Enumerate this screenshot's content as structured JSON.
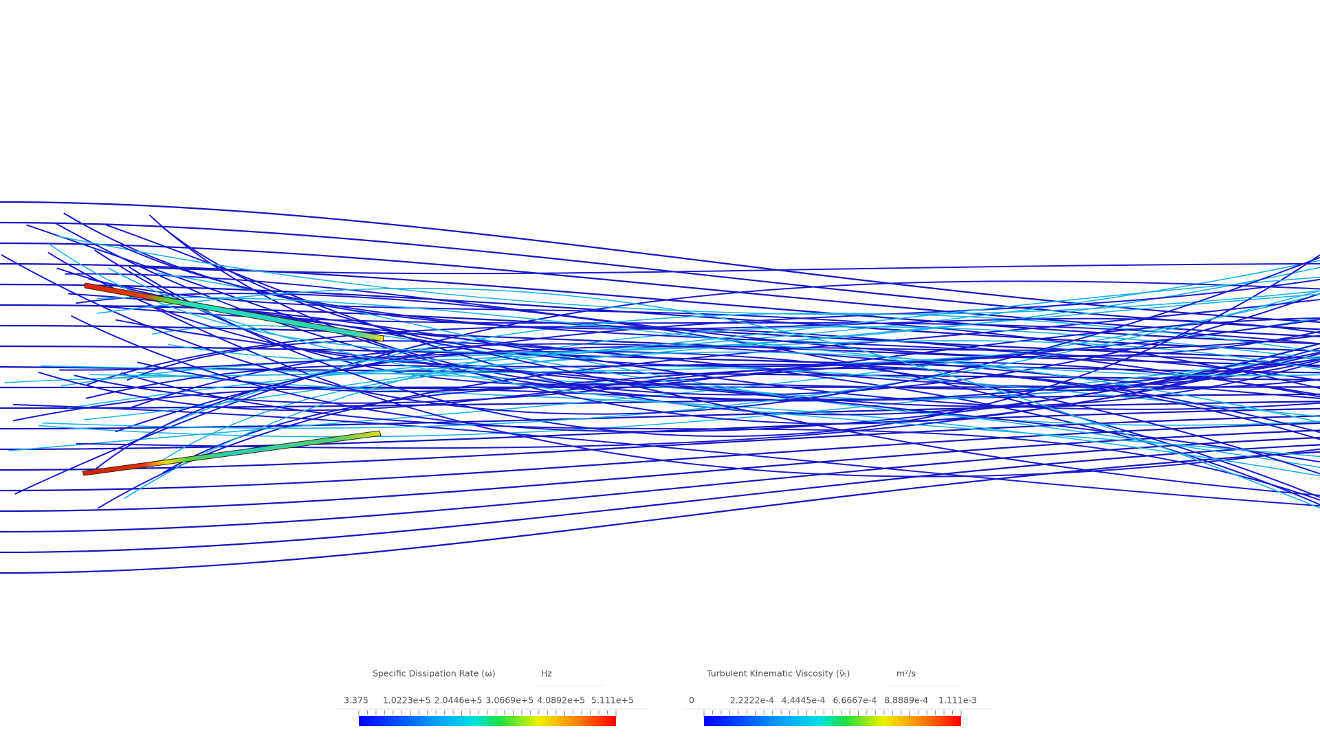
{
  "legends": [
    {
      "title": "Specific Dissipation Rate (ω)",
      "unit": "Hz",
      "ticks": [
        "3.375",
        "1.0223e+5",
        "2.0446e+5",
        "3.0669e+5",
        "4.0892e+5",
        "5.111e+5"
      ]
    },
    {
      "title": "Turbulent Kinematic Viscosity (ν̃ₜ)",
      "unit": "m²/s",
      "ticks": [
        "0",
        "2.2222e-4",
        "4.4445e-4",
        "6.6667e-4",
        "8.8889e-4",
        "1.111e-3"
      ]
    }
  ]
}
